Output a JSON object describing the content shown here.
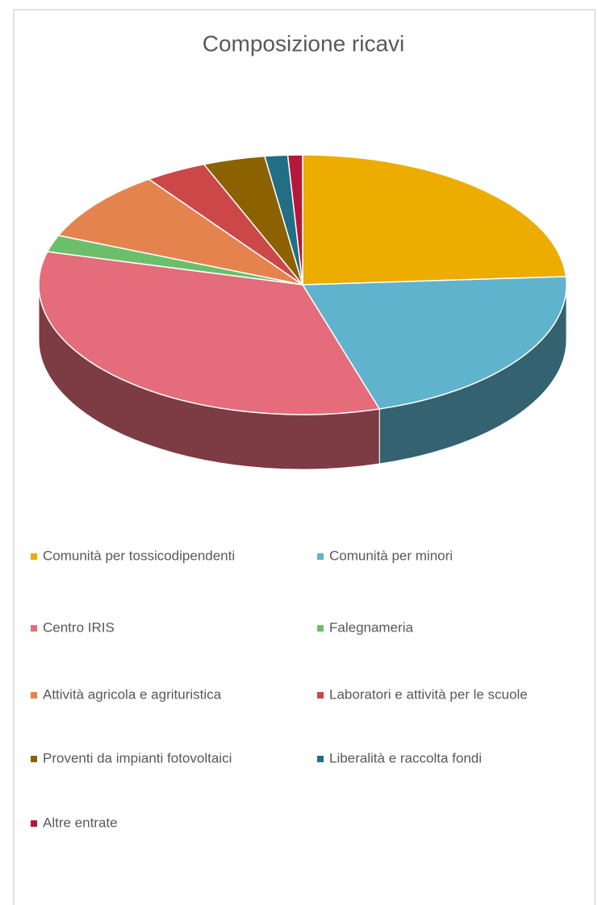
{
  "chart_data": {
    "type": "pie",
    "title": "Composizione ricavi",
    "categories": [
      "Comunità per tossicodipendenti",
      "Comunità per minori",
      "Centro IRIS",
      "Falegnameria",
      "Attività agricola e agrituristica",
      "Laboratori e attività per le scuole",
      "Proventi da impianti fotovoltaici",
      "Liberalità e raccolta fondi",
      "Altre entrate"
    ],
    "values": [
      24,
      21.3,
      33.8,
      2.1,
      8.9,
      3.8,
      3.8,
      1.4,
      0.9
    ],
    "colors": [
      "#ecac00",
      "#5fb3cc",
      "#e46c7b",
      "#6bbf6b",
      "#e5834e",
      "#cc4748",
      "#8c6100",
      "#226e84",
      "#b5183a"
    ],
    "legend": "bottom"
  }
}
